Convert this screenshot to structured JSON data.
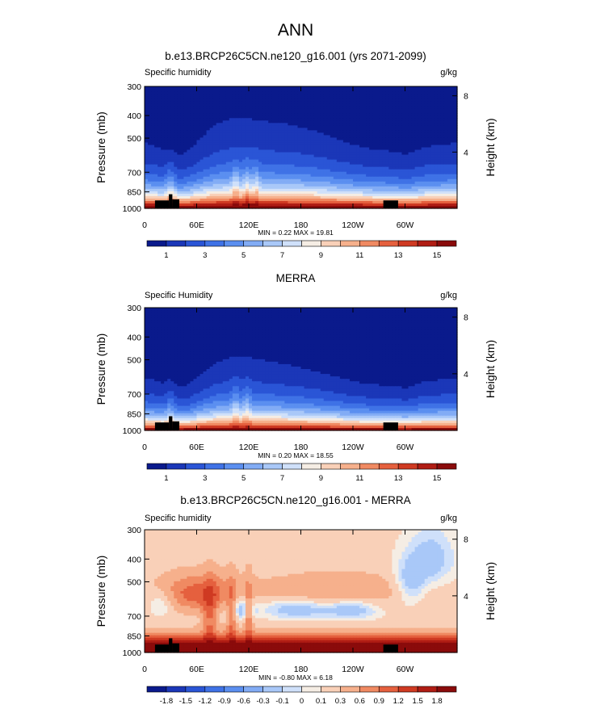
{
  "figure": {
    "title": "ANN"
  },
  "chart_data": [
    {
      "type": "heatmap",
      "title": "b.e13.BRCP26C5CN.ne120_g16.001 (yrs 2071-2099)",
      "left_label": "Specific humidity",
      "units": "g/kg",
      "ylabel": "Pressure (mb)",
      "y2label": "Height (km)",
      "y_ticks": [
        "300",
        "400",
        "500",
        "700",
        "850",
        "1000"
      ],
      "y2_ticks": [
        "8",
        "4"
      ],
      "x_ticks": [
        "0",
        "60E",
        "120E",
        "180",
        "120W",
        "60W"
      ],
      "stats": "MIN =  0.22  MAX =  19.81",
      "min": 0.22,
      "max": 19.81,
      "colorbar_labels": [
        "1",
        "3",
        "5",
        "7",
        "9",
        "11",
        "13",
        "15"
      ],
      "colorbar_colors": [
        "#0a1a8c",
        "#1b37b8",
        "#2a55d6",
        "#3f72e6",
        "#5b8ff0",
        "#82acf5",
        "#a9c8f8",
        "#cfe0fa",
        "#f5ede4",
        "#f9d0b8",
        "#f6b08c",
        "#f08a62",
        "#e5603e",
        "#cf3a22",
        "#b01d14",
        "#8a0b0b"
      ],
      "level_start": 0,
      "level_step": 1,
      "field": "specific_humidity_model"
    },
    {
      "type": "heatmap",
      "title": "MERRA",
      "left_label": "Specific Humidity",
      "units": "g/kg",
      "ylabel": "Pressure (mb)",
      "y2label": "Height (km)",
      "y_ticks": [
        "300",
        "400",
        "500",
        "700",
        "850",
        "1000"
      ],
      "y2_ticks": [
        "8",
        "4"
      ],
      "x_ticks": [
        "0",
        "60E",
        "120E",
        "180",
        "120W",
        "60W"
      ],
      "stats": "MIN =  0.20  MAX =  18.55",
      "min": 0.2,
      "max": 18.55,
      "colorbar_labels": [
        "1",
        "3",
        "5",
        "7",
        "9",
        "11",
        "13",
        "15"
      ],
      "colorbar_colors": [
        "#0a1a8c",
        "#1b37b8",
        "#2a55d6",
        "#3f72e6",
        "#5b8ff0",
        "#82acf5",
        "#a9c8f8",
        "#cfe0fa",
        "#f5ede4",
        "#f9d0b8",
        "#f6b08c",
        "#f08a62",
        "#e5603e",
        "#cf3a22",
        "#b01d14",
        "#8a0b0b"
      ],
      "level_start": 0,
      "level_step": 1,
      "field": "specific_humidity_obs"
    },
    {
      "type": "heatmap",
      "title": "b.e13.BRCP26C5CN.ne120_g16.001 - MERRA",
      "left_label": "Specific humidity",
      "units": "g/kg",
      "ylabel": "Pressure (mb)",
      "y2label": "Height (km)",
      "y_ticks": [
        "300",
        "400",
        "500",
        "700",
        "850",
        "1000"
      ],
      "y2_ticks": [
        "8",
        "4"
      ],
      "x_ticks": [
        "0",
        "60E",
        "120E",
        "180",
        "120W",
        "60W"
      ],
      "stats": "MIN = -0.80  MAX =  6.18",
      "min": -0.8,
      "max": 6.18,
      "colorbar_labels": [
        "-1.8",
        "-1.5",
        "-1.2",
        "-0.9",
        "-0.6",
        "-0.3",
        "-0.1",
        "0",
        "0.1",
        "0.3",
        "0.6",
        "0.9",
        "1.2",
        "1.5",
        "1.8"
      ],
      "colorbar_colors": [
        "#0a1a8c",
        "#1b37b8",
        "#2a55d6",
        "#3f72e6",
        "#5b8ff0",
        "#82acf5",
        "#a9c8f8",
        "#cfe0fa",
        "#f5ede4",
        "#f9d0b8",
        "#f6b08c",
        "#f08a62",
        "#e5603e",
        "#cf3a22",
        "#b01d14",
        "#8a0b0b"
      ],
      "levels": [
        -1.8,
        -1.5,
        -1.2,
        -0.9,
        -0.6,
        -0.3,
        -0.1,
        0,
        0.1,
        0.3,
        0.6,
        0.9,
        1.2,
        1.5,
        1.8
      ],
      "field": "specific_humidity_difference"
    }
  ]
}
